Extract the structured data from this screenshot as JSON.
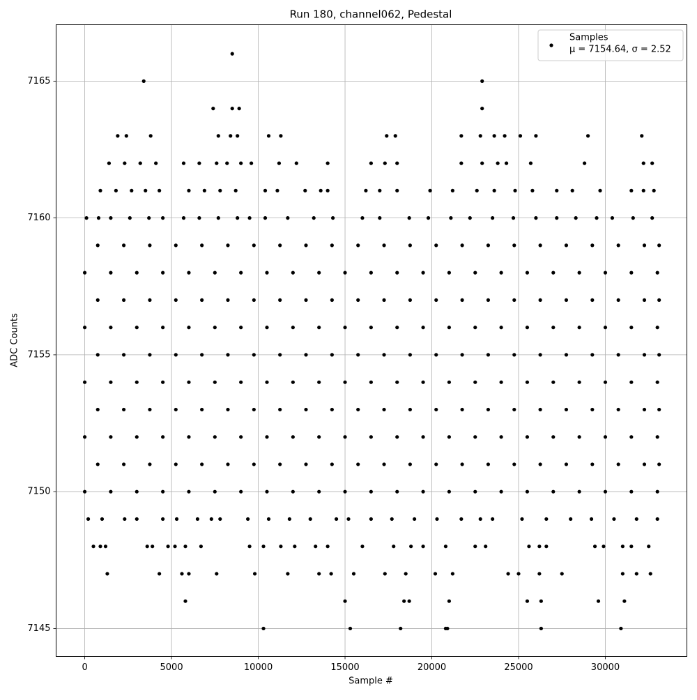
{
  "chart_data": {
    "type": "scatter",
    "title": "Run 180, channel062, Pedestal",
    "x_label": "Sample #",
    "y_label": "ADC Counts",
    "xlim": [
      -1650,
      34700
    ],
    "ylim": [
      7143.98,
      7167.06
    ],
    "xticks": [
      0,
      5000,
      10000,
      15000,
      20000,
      25000,
      30000
    ],
    "yticks": [
      7145,
      7150,
      7155,
      7160,
      7165
    ],
    "grid": true,
    "legend": "upper right",
    "legend_note": "μ = 7154.64, σ = 2.52",
    "series": [
      {
        "name": "Samples",
        "color": "#000000",
        "x": [
          10300,
          15300,
          18200,
          20800,
          20900,
          26300,
          30900,
          5800,
          15000,
          18400,
          18700,
          21000,
          25500,
          26300,
          29600,
          31100,
          1300,
          4300,
          5600,
          6000,
          7600,
          9800,
          11700,
          13500,
          14200,
          15500,
          17300,
          18500,
          20200,
          21200,
          24400,
          25000,
          26200,
          27500,
          31000,
          31800,
          32600,
          500,
          900,
          1200,
          3600,
          3900,
          4800,
          5200,
          5800,
          6700,
          9500,
          10300,
          11300,
          12100,
          13300,
          14000,
          16000,
          17800,
          18800,
          19500,
          20800,
          22500,
          23100,
          25600,
          26200,
          26600,
          29400,
          29900,
          31000,
          31500,
          32500,
          200,
          1000,
          2300,
          3000,
          4500,
          5300,
          6500,
          7300,
          7800,
          9400,
          10600,
          11800,
          13000,
          14500,
          15200,
          16500,
          17700,
          19000,
          20300,
          21700,
          22800,
          23500,
          25200,
          26600,
          28000,
          29200,
          30500,
          31800,
          33000,
          0,
          1500,
          3000,
          4500,
          6000,
          7500,
          9000,
          10500,
          12000,
          13500,
          15000,
          16500,
          18000,
          19500,
          21000,
          22500,
          24000,
          25500,
          27000,
          28500,
          30000,
          31500,
          33000,
          750,
          2250,
          3750,
          5250,
          6750,
          8250,
          9750,
          11250,
          12750,
          14250,
          15750,
          17250,
          18750,
          20250,
          21750,
          23250,
          24750,
          26250,
          27750,
          29250,
          30750,
          32250,
          33100,
          0,
          1500,
          3000,
          4500,
          6000,
          7500,
          9000,
          10500,
          12000,
          13500,
          15000,
          16500,
          18000,
          19500,
          21000,
          22500,
          24000,
          25500,
          27000,
          28500,
          30000,
          31500,
          33000,
          750,
          2250,
          3750,
          5250,
          6750,
          8250,
          9750,
          11250,
          12750,
          14250,
          15750,
          17250,
          18750,
          20250,
          21750,
          23250,
          24750,
          26250,
          27750,
          29250,
          30750,
          32250,
          33100,
          0,
          1500,
          3000,
          4500,
          6000,
          7500,
          9000,
          10500,
          12000,
          13500,
          15000,
          16500,
          18000,
          19500,
          21000,
          22500,
          24000,
          25500,
          27000,
          28500,
          30000,
          31500,
          33000,
          750,
          2250,
          3750,
          5250,
          6750,
          8250,
          9750,
          11250,
          12750,
          14250,
          15750,
          17250,
          18750,
          20250,
          21750,
          23250,
          24750,
          26250,
          27750,
          29250,
          30750,
          32250,
          33100,
          0,
          1500,
          3000,
          4500,
          6000,
          7500,
          9000,
          10500,
          12000,
          13500,
          15000,
          16500,
          18000,
          19500,
          21000,
          22500,
          24000,
          25500,
          27000,
          28500,
          30000,
          31500,
          33000,
          750,
          2250,
          3750,
          5250,
          6750,
          8250,
          9750,
          11250,
          12750,
          14250,
          15750,
          17250,
          18750,
          20250,
          21750,
          23250,
          24750,
          26250,
          27750,
          29250,
          30750,
          32250,
          33100,
          0,
          1500,
          3000,
          4500,
          6000,
          7500,
          9000,
          10500,
          12000,
          13500,
          15000,
          16500,
          18000,
          19500,
          21000,
          22500,
          24000,
          25500,
          27000,
          28500,
          30000,
          31500,
          33000,
          750,
          2250,
          3750,
          5250,
          6750,
          8250,
          9750,
          11250,
          12750,
          14250,
          15750,
          17250,
          18750,
          20250,
          21750,
          23250,
          24750,
          26250,
          27750,
          29250,
          30750,
          32250,
          33100,
          100,
          800,
          1500,
          2600,
          3700,
          4500,
          5700,
          6600,
          7700,
          8800,
          9500,
          10400,
          11700,
          13200,
          14300,
          16000,
          17000,
          18700,
          19800,
          21100,
          22200,
          23500,
          24700,
          26000,
          27200,
          28300,
          29500,
          30400,
          31600,
          32700,
          900,
          1800,
          2700,
          3500,
          4300,
          6000,
          6900,
          7800,
          8700,
          10400,
          11100,
          12700,
          13600,
          14000,
          16200,
          17000,
          18000,
          19900,
          21200,
          22600,
          23600,
          24800,
          25800,
          27200,
          28100,
          29700,
          31500,
          32200,
          32800,
          1400,
          2300,
          3200,
          4100,
          5700,
          6600,
          7600,
          8200,
          9000,
          9600,
          11200,
          12200,
          14000,
          16500,
          17300,
          18000,
          21700,
          22900,
          23800,
          24300,
          25700,
          28800,
          32200,
          32700,
          1900,
          2400,
          3800,
          7700,
          8400,
          8800,
          10600,
          11300,
          17400,
          17900,
          21700,
          22800,
          23600,
          24200,
          25100,
          26000,
          29000,
          32100,
          7400,
          8500,
          8900,
          22900,
          3400,
          22900,
          8500
        ],
        "y": [
          7145,
          7145,
          7145,
          7145,
          7145,
          7145,
          7145,
          7146,
          7146,
          7146,
          7146,
          7146,
          7146,
          7146,
          7146,
          7146,
          7147,
          7147,
          7147,
          7147,
          7147,
          7147,
          7147,
          7147,
          7147,
          7147,
          7147,
          7147,
          7147,
          7147,
          7147,
          7147,
          7147,
          7147,
          7147,
          7147,
          7147,
          7148,
          7148,
          7148,
          7148,
          7148,
          7148,
          7148,
          7148,
          7148,
          7148,
          7148,
          7148,
          7148,
          7148,
          7148,
          7148,
          7148,
          7148,
          7148,
          7148,
          7148,
          7148,
          7148,
          7148,
          7148,
          7148,
          7148,
          7148,
          7148,
          7148,
          7149,
          7149,
          7149,
          7149,
          7149,
          7149,
          7149,
          7149,
          7149,
          7149,
          7149,
          7149,
          7149,
          7149,
          7149,
          7149,
          7149,
          7149,
          7149,
          7149,
          7149,
          7149,
          7149,
          7149,
          7149,
          7149,
          7149,
          7149,
          7149,
          7150,
          7150,
          7150,
          7150,
          7150,
          7150,
          7150,
          7150,
          7150,
          7150,
          7150,
          7150,
          7150,
          7150,
          7150,
          7150,
          7150,
          7150,
          7150,
          7150,
          7150,
          7150,
          7150,
          7151,
          7151,
          7151,
          7151,
          7151,
          7151,
          7151,
          7151,
          7151,
          7151,
          7151,
          7151,
          7151,
          7151,
          7151,
          7151,
          7151,
          7151,
          7151,
          7151,
          7151,
          7151,
          7151,
          7152,
          7152,
          7152,
          7152,
          7152,
          7152,
          7152,
          7152,
          7152,
          7152,
          7152,
          7152,
          7152,
          7152,
          7152,
          7152,
          7152,
          7152,
          7152,
          7152,
          7152,
          7152,
          7152,
          7153,
          7153,
          7153,
          7153,
          7153,
          7153,
          7153,
          7153,
          7153,
          7153,
          7153,
          7153,
          7153,
          7153,
          7153,
          7153,
          7153,
          7153,
          7153,
          7153,
          7153,
          7153,
          7153,
          7154,
          7154,
          7154,
          7154,
          7154,
          7154,
          7154,
          7154,
          7154,
          7154,
          7154,
          7154,
          7154,
          7154,
          7154,
          7154,
          7154,
          7154,
          7154,
          7154,
          7154,
          7154,
          7154,
          7155,
          7155,
          7155,
          7155,
          7155,
          7155,
          7155,
          7155,
          7155,
          7155,
          7155,
          7155,
          7155,
          7155,
          7155,
          7155,
          7155,
          7155,
          7155,
          7155,
          7155,
          7155,
          7155,
          7156,
          7156,
          7156,
          7156,
          7156,
          7156,
          7156,
          7156,
          7156,
          7156,
          7156,
          7156,
          7156,
          7156,
          7156,
          7156,
          7156,
          7156,
          7156,
          7156,
          7156,
          7156,
          7156,
          7157,
          7157,
          7157,
          7157,
          7157,
          7157,
          7157,
          7157,
          7157,
          7157,
          7157,
          7157,
          7157,
          7157,
          7157,
          7157,
          7157,
          7157,
          7157,
          7157,
          7157,
          7157,
          7157,
          7158,
          7158,
          7158,
          7158,
          7158,
          7158,
          7158,
          7158,
          7158,
          7158,
          7158,
          7158,
          7158,
          7158,
          7158,
          7158,
          7158,
          7158,
          7158,
          7158,
          7158,
          7158,
          7158,
          7159,
          7159,
          7159,
          7159,
          7159,
          7159,
          7159,
          7159,
          7159,
          7159,
          7159,
          7159,
          7159,
          7159,
          7159,
          7159,
          7159,
          7159,
          7159,
          7159,
          7159,
          7159,
          7159,
          7160,
          7160,
          7160,
          7160,
          7160,
          7160,
          7160,
          7160,
          7160,
          7160,
          7160,
          7160,
          7160,
          7160,
          7160,
          7160,
          7160,
          7160,
          7160,
          7160,
          7160,
          7160,
          7160,
          7160,
          7160,
          7160,
          7160,
          7160,
          7160,
          7160,
          7161,
          7161,
          7161,
          7161,
          7161,
          7161,
          7161,
          7161,
          7161,
          7161,
          7161,
          7161,
          7161,
          7161,
          7161,
          7161,
          7161,
          7161,
          7161,
          7161,
          7161,
          7161,
          7161,
          7161,
          7161,
          7161,
          7161,
          7161,
          7161,
          7162,
          7162,
          7162,
          7162,
          7162,
          7162,
          7162,
          7162,
          7162,
          7162,
          7162,
          7162,
          7162,
          7162,
          7162,
          7162,
          7162,
          7162,
          7162,
          7162,
          7162,
          7162,
          7162,
          7162,
          7163,
          7163,
          7163,
          7163,
          7163,
          7163,
          7163,
          7163,
          7163,
          7163,
          7163,
          7163,
          7163,
          7163,
          7163,
          7163,
          7163,
          7163,
          7164,
          7164,
          7164,
          7164,
          7165,
          7165,
          7166
        ]
      }
    ]
  }
}
